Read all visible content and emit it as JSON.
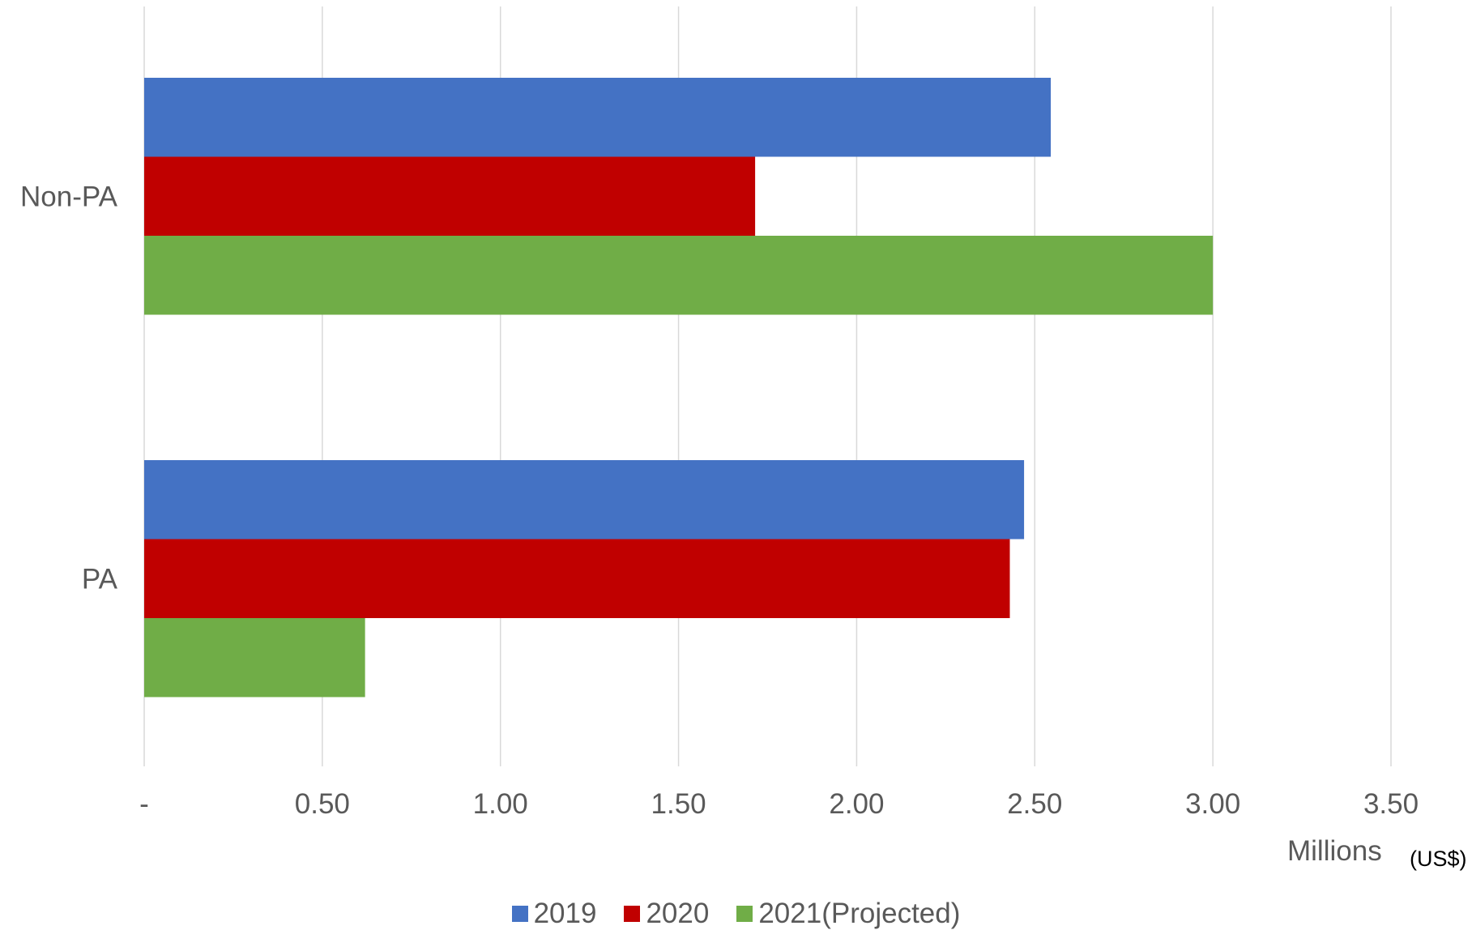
{
  "chart_data": {
    "type": "bar",
    "orientation": "horizontal",
    "categories": [
      "Non-PA",
      "PA"
    ],
    "series": [
      {
        "name": "2019",
        "color": "#4472C4",
        "values": [
          2.545,
          2.47
        ]
      },
      {
        "name": "2020",
        "color": "#C00000",
        "values": [
          1.715,
          2.43
        ]
      },
      {
        "name": "2021(Projected)",
        "color": "#70AD47",
        "values": [
          3.0,
          0.62
        ]
      }
    ],
    "xlim": [
      0,
      3.5
    ],
    "xticks": [
      0,
      0.5,
      1.0,
      1.5,
      2.0,
      2.5,
      3.0,
      3.5
    ],
    "xtick_labels": [
      "-",
      "0.50",
      "1.00",
      "1.50",
      "2.00",
      "2.50",
      "3.00",
      "3.50"
    ],
    "xlabel": "Millions",
    "xlabel_sub": "(US$)",
    "grid": "vertical",
    "legend_position": "bottom"
  }
}
